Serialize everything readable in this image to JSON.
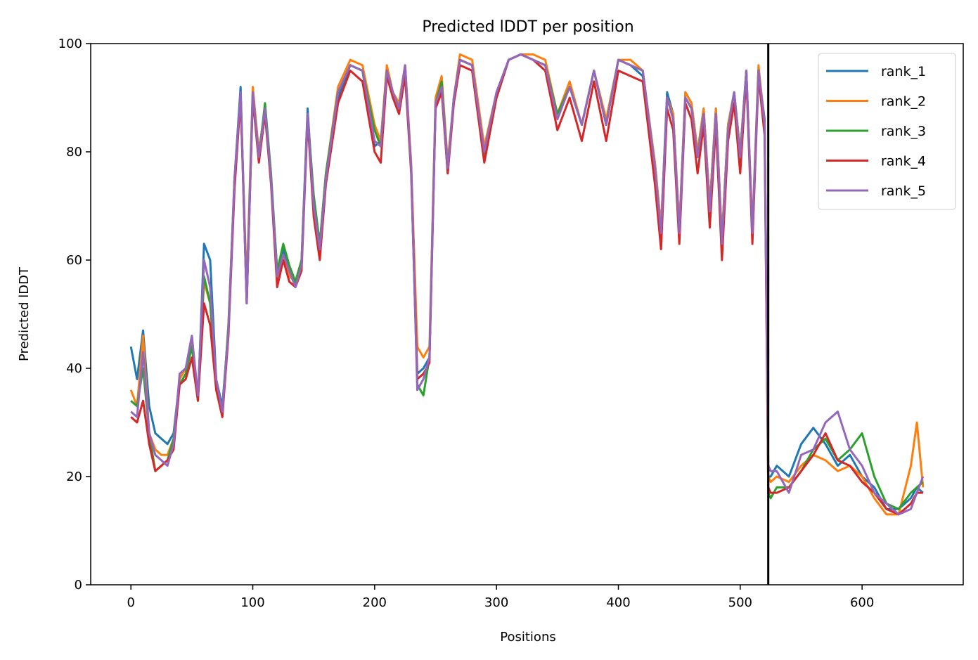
{
  "chart_data": {
    "type": "line",
    "title": "Predicted lDDT per position",
    "xlabel": "Positions",
    "ylabel": "Predicted lDDT",
    "xlim": [
      -33,
      683
    ],
    "ylim": [
      0,
      100
    ],
    "xticks": [
      0,
      100,
      200,
      300,
      400,
      500,
      600
    ],
    "yticks": [
      0,
      20,
      40,
      60,
      80,
      100
    ],
    "grid": false,
    "legend_position": "top-right",
    "vertical_line": {
      "x": 523,
      "color": "#000000"
    },
    "series": [
      {
        "name": "rank_1",
        "color": "#1f77b4",
        "x": [
          0,
          5,
          10,
          15,
          20,
          25,
          30,
          35,
          40,
          45,
          50,
          55,
          60,
          65,
          70,
          75,
          80,
          85,
          90,
          95,
          100,
          105,
          110,
          115,
          120,
          125,
          130,
          135,
          140,
          145,
          150,
          155,
          160,
          170,
          180,
          190,
          200,
          205,
          210,
          215,
          220,
          225,
          230,
          235,
          240,
          245,
          250,
          255,
          260,
          265,
          270,
          280,
          290,
          300,
          310,
          320,
          330,
          340,
          350,
          360,
          370,
          380,
          390,
          400,
          410,
          420,
          430,
          435,
          440,
          445,
          450,
          455,
          460,
          465,
          470,
          475,
          480,
          485,
          490,
          495,
          500,
          505,
          510,
          515,
          520,
          523,
          525,
          530,
          540,
          550,
          560,
          570,
          580,
          590,
          600,
          610,
          620,
          630,
          640,
          645,
          650
        ],
        "y": [
          44,
          38,
          47,
          33,
          28,
          27,
          26,
          28,
          38,
          40,
          46,
          34,
          63,
          60,
          38,
          33,
          47,
          75,
          92,
          52,
          90,
          80,
          88,
          75,
          58,
          62,
          58,
          55,
          60,
          88,
          70,
          62,
          75,
          90,
          96,
          95,
          81,
          82,
          95,
          90,
          89,
          96,
          77,
          39,
          40,
          42,
          89,
          92,
          76,
          90,
          97,
          96,
          80,
          90,
          97,
          98,
          97,
          96,
          87,
          92,
          85,
          95,
          85,
          97,
          96,
          94,
          78,
          66,
          91,
          87,
          66,
          91,
          89,
          80,
          88,
          70,
          88,
          64,
          85,
          91,
          80,
          95,
          65,
          95,
          86,
          20,
          20,
          22,
          20,
          26,
          29,
          26,
          22,
          24,
          20,
          18,
          14,
          14,
          16,
          18,
          17
        ]
      },
      {
        "name": "rank_2",
        "color": "#ff7f0e",
        "x": [
          0,
          5,
          10,
          15,
          20,
          25,
          30,
          35,
          40,
          45,
          50,
          55,
          60,
          65,
          70,
          75,
          80,
          85,
          90,
          95,
          100,
          105,
          110,
          115,
          120,
          125,
          130,
          135,
          140,
          145,
          150,
          155,
          160,
          170,
          180,
          190,
          200,
          205,
          210,
          215,
          220,
          225,
          230,
          235,
          240,
          245,
          250,
          255,
          260,
          265,
          270,
          280,
          290,
          300,
          310,
          320,
          330,
          340,
          350,
          360,
          370,
          380,
          390,
          400,
          410,
          420,
          430,
          435,
          440,
          445,
          450,
          455,
          460,
          465,
          470,
          475,
          480,
          485,
          490,
          495,
          500,
          505,
          510,
          515,
          520,
          523,
          525,
          530,
          540,
          550,
          560,
          570,
          580,
          590,
          600,
          610,
          620,
          630,
          640,
          645,
          650
        ],
        "y": [
          36,
          33,
          46,
          28,
          25,
          24,
          24,
          27,
          38,
          40,
          45,
          35,
          56,
          52,
          38,
          31,
          48,
          75,
          90,
          55,
          92,
          80,
          88,
          75,
          56,
          60,
          57,
          56,
          60,
          87,
          70,
          63,
          76,
          92,
          97,
          96,
          85,
          82,
          96,
          91,
          89,
          96,
          78,
          44,
          42,
          44,
          90,
          94,
          78,
          90,
          98,
          97,
          81,
          91,
          97,
          98,
          98,
          97,
          87,
          93,
          85,
          95,
          86,
          97,
          97,
          95,
          78,
          66,
          90,
          87,
          66,
          91,
          89,
          80,
          88,
          70,
          88,
          64,
          85,
          91,
          80,
          95,
          66,
          96,
          85,
          20,
          19,
          20,
          19,
          22,
          24,
          23,
          21,
          22,
          20,
          16,
          13,
          13,
          22,
          30,
          18
        ]
      },
      {
        "name": "rank_3",
        "color": "#2ca02c",
        "x": [
          0,
          5,
          10,
          15,
          20,
          25,
          30,
          35,
          40,
          45,
          50,
          55,
          60,
          65,
          70,
          75,
          80,
          85,
          90,
          95,
          100,
          105,
          110,
          115,
          120,
          125,
          130,
          135,
          140,
          145,
          150,
          155,
          160,
          170,
          180,
          190,
          200,
          205,
          210,
          215,
          220,
          225,
          230,
          235,
          240,
          245,
          250,
          255,
          260,
          265,
          270,
          280,
          290,
          300,
          310,
          320,
          330,
          340,
          350,
          360,
          370,
          380,
          390,
          400,
          410,
          420,
          430,
          435,
          440,
          445,
          450,
          455,
          460,
          465,
          470,
          475,
          480,
          485,
          490,
          495,
          500,
          505,
          510,
          515,
          520,
          523,
          525,
          530,
          540,
          550,
          560,
          570,
          580,
          590,
          600,
          610,
          620,
          630,
          640,
          645,
          650
        ],
        "y": [
          34,
          33,
          40,
          28,
          21,
          22,
          23,
          27,
          37,
          39,
          44,
          34,
          57,
          52,
          37,
          32,
          48,
          74,
          91,
          53,
          91,
          79,
          89,
          76,
          58,
          63,
          59,
          56,
          60,
          87,
          72,
          63,
          76,
          91,
          96,
          95,
          84,
          81,
          95,
          91,
          88,
          95,
          77,
          37,
          35,
          42,
          89,
          93,
          77,
          90,
          97,
          96,
          79,
          91,
          97,
          98,
          97,
          96,
          87,
          92,
          85,
          95,
          85,
          97,
          96,
          95,
          77,
          64,
          90,
          86,
          64,
          90,
          88,
          79,
          87,
          68,
          87,
          62,
          84,
          91,
          79,
          95,
          64,
          95,
          84,
          17,
          16,
          18,
          18,
          21,
          25,
          27,
          23,
          25,
          28,
          20,
          15,
          14,
          17,
          18,
          19
        ]
      },
      {
        "name": "rank_4",
        "color": "#d62728",
        "x": [
          0,
          5,
          10,
          15,
          20,
          25,
          30,
          35,
          40,
          45,
          50,
          55,
          60,
          65,
          70,
          75,
          80,
          85,
          90,
          95,
          100,
          105,
          110,
          115,
          120,
          125,
          130,
          135,
          140,
          145,
          150,
          155,
          160,
          170,
          180,
          190,
          200,
          205,
          210,
          215,
          220,
          225,
          230,
          235,
          240,
          245,
          250,
          255,
          260,
          265,
          270,
          280,
          290,
          300,
          310,
          320,
          330,
          340,
          350,
          360,
          370,
          380,
          390,
          400,
          410,
          420,
          430,
          435,
          440,
          445,
          450,
          455,
          460,
          465,
          470,
          475,
          480,
          485,
          490,
          495,
          500,
          505,
          510,
          515,
          520,
          523,
          525,
          530,
          540,
          550,
          560,
          570,
          580,
          590,
          600,
          610,
          620,
          630,
          640,
          645,
          650
        ],
        "y": [
          31,
          30,
          34,
          26,
          21,
          22,
          23,
          25,
          37,
          38,
          42,
          34,
          52,
          48,
          36,
          31,
          46,
          73,
          90,
          52,
          90,
          78,
          87,
          74,
          55,
          60,
          56,
          55,
          58,
          86,
          68,
          60,
          74,
          89,
          95,
          93,
          80,
          78,
          94,
          90,
          87,
          94,
          76,
          38,
          39,
          41,
          88,
          91,
          76,
          89,
          96,
          95,
          78,
          90,
          97,
          98,
          97,
          95,
          84,
          90,
          82,
          93,
          82,
          95,
          94,
          93,
          74,
          62,
          88,
          84,
          63,
          89,
          86,
          76,
          85,
          66,
          85,
          60,
          82,
          89,
          76,
          94,
          63,
          94,
          83,
          18,
          17,
          17,
          18,
          21,
          24,
          28,
          23,
          22,
          19,
          17,
          14,
          13,
          15,
          17,
          17
        ]
      },
      {
        "name": "rank_5",
        "color": "#9467bd",
        "x": [
          0,
          5,
          10,
          15,
          20,
          25,
          30,
          35,
          40,
          45,
          50,
          55,
          60,
          65,
          70,
          75,
          80,
          85,
          90,
          95,
          100,
          105,
          110,
          115,
          120,
          125,
          130,
          135,
          140,
          145,
          150,
          155,
          160,
          170,
          180,
          190,
          200,
          205,
          210,
          215,
          220,
          225,
          230,
          235,
          240,
          245,
          250,
          255,
          260,
          265,
          270,
          280,
          290,
          300,
          310,
          320,
          330,
          340,
          350,
          360,
          370,
          380,
          390,
          400,
          410,
          420,
          430,
          435,
          440,
          445,
          450,
          455,
          460,
          465,
          470,
          475,
          480,
          485,
          490,
          495,
          500,
          505,
          510,
          515,
          520,
          523,
          525,
          530,
          540,
          550,
          560,
          570,
          580,
          590,
          600,
          610,
          620,
          630,
          640,
          645,
          650
        ],
        "y": [
          32,
          31,
          43,
          28,
          24,
          23,
          22,
          26,
          39,
          40,
          46,
          35,
          60,
          55,
          38,
          32,
          47,
          75,
          91,
          52,
          91,
          79,
          88,
          75,
          57,
          61,
          58,
          55,
          59,
          87,
          70,
          62,
          75,
          91,
          96,
          95,
          82,
          81,
          95,
          91,
          88,
          96,
          77,
          36,
          38,
          42,
          89,
          92,
          77,
          90,
          97,
          96,
          80,
          91,
          97,
          98,
          97,
          96,
          86,
          92,
          85,
          95,
          85,
          97,
          96,
          95,
          77,
          65,
          90,
          86,
          65,
          90,
          88,
          79,
          87,
          69,
          87,
          63,
          84,
          91,
          79,
          95,
          65,
          95,
          85,
          22,
          21,
          21,
          17,
          24,
          25,
          30,
          32,
          25,
          22,
          17,
          15,
          13,
          14,
          17,
          20
        ]
      }
    ]
  }
}
